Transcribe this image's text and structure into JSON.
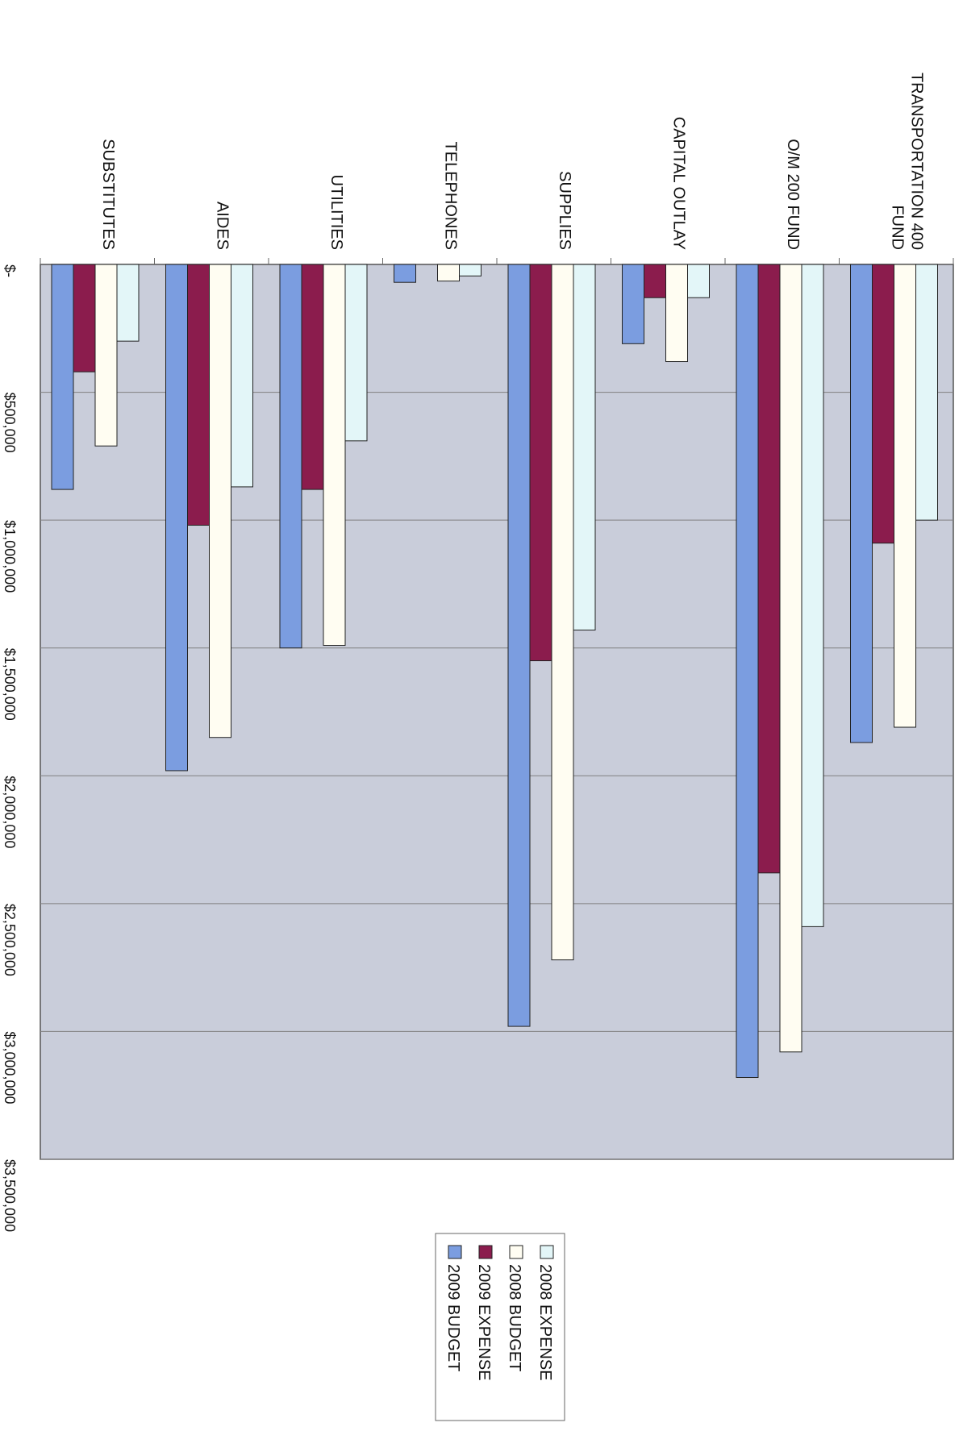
{
  "chart_data": {
    "type": "bar",
    "orientation": "rotated-90-clockwise",
    "categories": [
      "SUBSTITUTES",
      "AIDES",
      "UTILITIES",
      "TELEPHONES",
      "SUPPLIES",
      "CAPITAL OUTLAY",
      "O/M 200 FUND",
      "TRANSPORTATION 400 FUND"
    ],
    "category_label_lines": [
      [
        "SUBSTITUTES"
      ],
      [
        "AIDES"
      ],
      [
        "UTILITIES"
      ],
      [
        "TELEPHONES"
      ],
      [
        "SUPPLIES"
      ],
      [
        "CAPITAL OUTLAY"
      ],
      [
        "O/M 200 FUND"
      ],
      [
        "TRANSPORTATION 400",
        "FUND"
      ]
    ],
    "series": [
      {
        "name": "2009 BUDGET",
        "color": "#7b9de0",
        "values": [
          880000,
          1980000,
          1500000,
          70000,
          2980000,
          310000,
          3180000,
          1870000
        ]
      },
      {
        "name": "2009 EXPENSE",
        "color": "#8b1c4d",
        "values": [
          420000,
          1020000,
          880000,
          0,
          1550000,
          130000,
          2380000,
          1090000
        ]
      },
      {
        "name": "2008 BUDGET",
        "color": "#fffdf2",
        "values": [
          710000,
          1850000,
          1490000,
          65000,
          2720000,
          380000,
          3080000,
          1810000
        ]
      },
      {
        "name": "2008 EXPENSE",
        "color": "#e3f6f8",
        "values": [
          300000,
          870000,
          690000,
          45000,
          1430000,
          130000,
          2590000,
          1000000
        ]
      }
    ],
    "legend_order": [
      "2008 EXPENSE",
      "2008 BUDGET",
      "2009 EXPENSE",
      "2009 BUDGET"
    ],
    "ylim": [
      0,
      3500000
    ],
    "yticks": [
      0,
      500000,
      1000000,
      1500000,
      2000000,
      2500000,
      3000000,
      3500000
    ],
    "ytick_labels": [
      "$-",
      "$500,000",
      "$1,000,000",
      "$1,500,000",
      "$2,000,000",
      "$2,500,000",
      "$3,000,000",
      "$3,500,000"
    ],
    "plot_background": "#c9cdda",
    "grid": true,
    "legend_position": "bottom"
  }
}
